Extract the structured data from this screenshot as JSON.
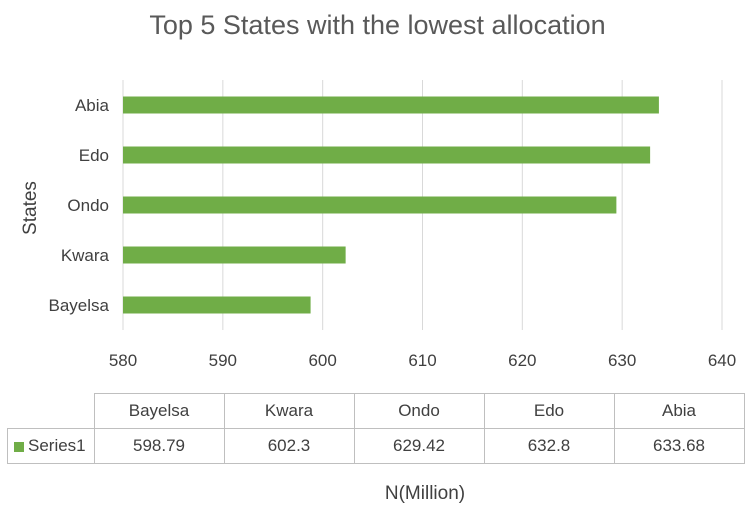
{
  "chart_data": {
    "type": "bar",
    "orientation": "horizontal",
    "title": "Top 5 States with the lowest  allocation",
    "xlabel": "N(Million)",
    "ylabel": "States",
    "categories": [
      "Bayelsa",
      "Kwara",
      "Ondo",
      "Edo",
      "Abia"
    ],
    "series": [
      {
        "name": "Series1",
        "values": [
          598.79,
          602.3,
          629.42,
          632.8,
          633.68
        ]
      }
    ],
    "xlim": [
      580,
      640
    ],
    "xticks": [
      "580",
      "590",
      "600",
      "610",
      "620",
      "630",
      "640"
    ],
    "grid": true,
    "data_table": {
      "series_label": "Series1",
      "values_text": [
        "598.79",
        "602.3",
        "629.42",
        "632.8",
        "633.68"
      ]
    },
    "colors": {
      "bar": "#70ad47",
      "grid": "#d9d9d9",
      "border": "#bfbfbf"
    }
  }
}
